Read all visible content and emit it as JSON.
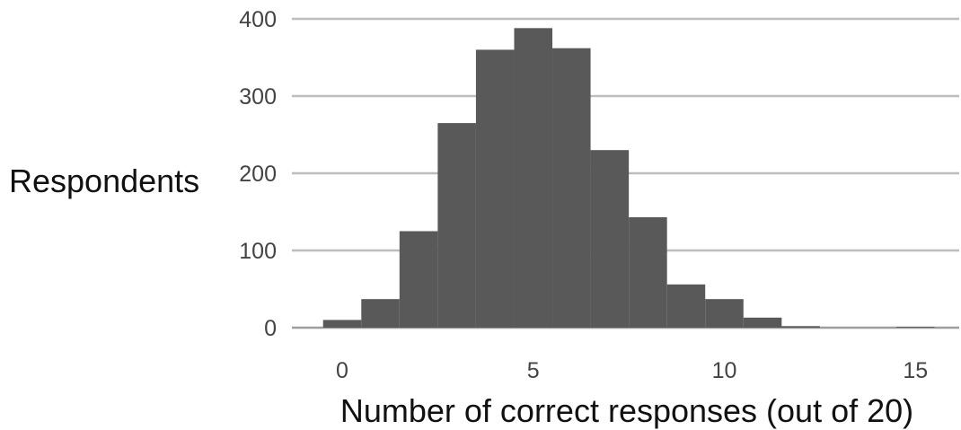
{
  "chart_data": {
    "type": "bar",
    "title": "",
    "xlabel": "Number of correct responses (out of 20)",
    "ylabel": "Respondents",
    "x": [
      0,
      1,
      2,
      3,
      4,
      5,
      6,
      7,
      8,
      9,
      10,
      11,
      12,
      13,
      14,
      15
    ],
    "values": [
      10,
      37,
      125,
      265,
      360,
      388,
      362,
      230,
      143,
      56,
      37,
      13,
      2,
      0,
      0,
      1
    ],
    "ylim": [
      0,
      400
    ],
    "yticks": [
      "0",
      "100",
      "200",
      "300",
      "400"
    ],
    "xticks": [
      "0",
      "5",
      "10",
      "15"
    ],
    "xtick_values": [
      0,
      5,
      10,
      15
    ],
    "grid": true,
    "bar_color": "#595959",
    "grid_color": "#bdbdbd"
  }
}
